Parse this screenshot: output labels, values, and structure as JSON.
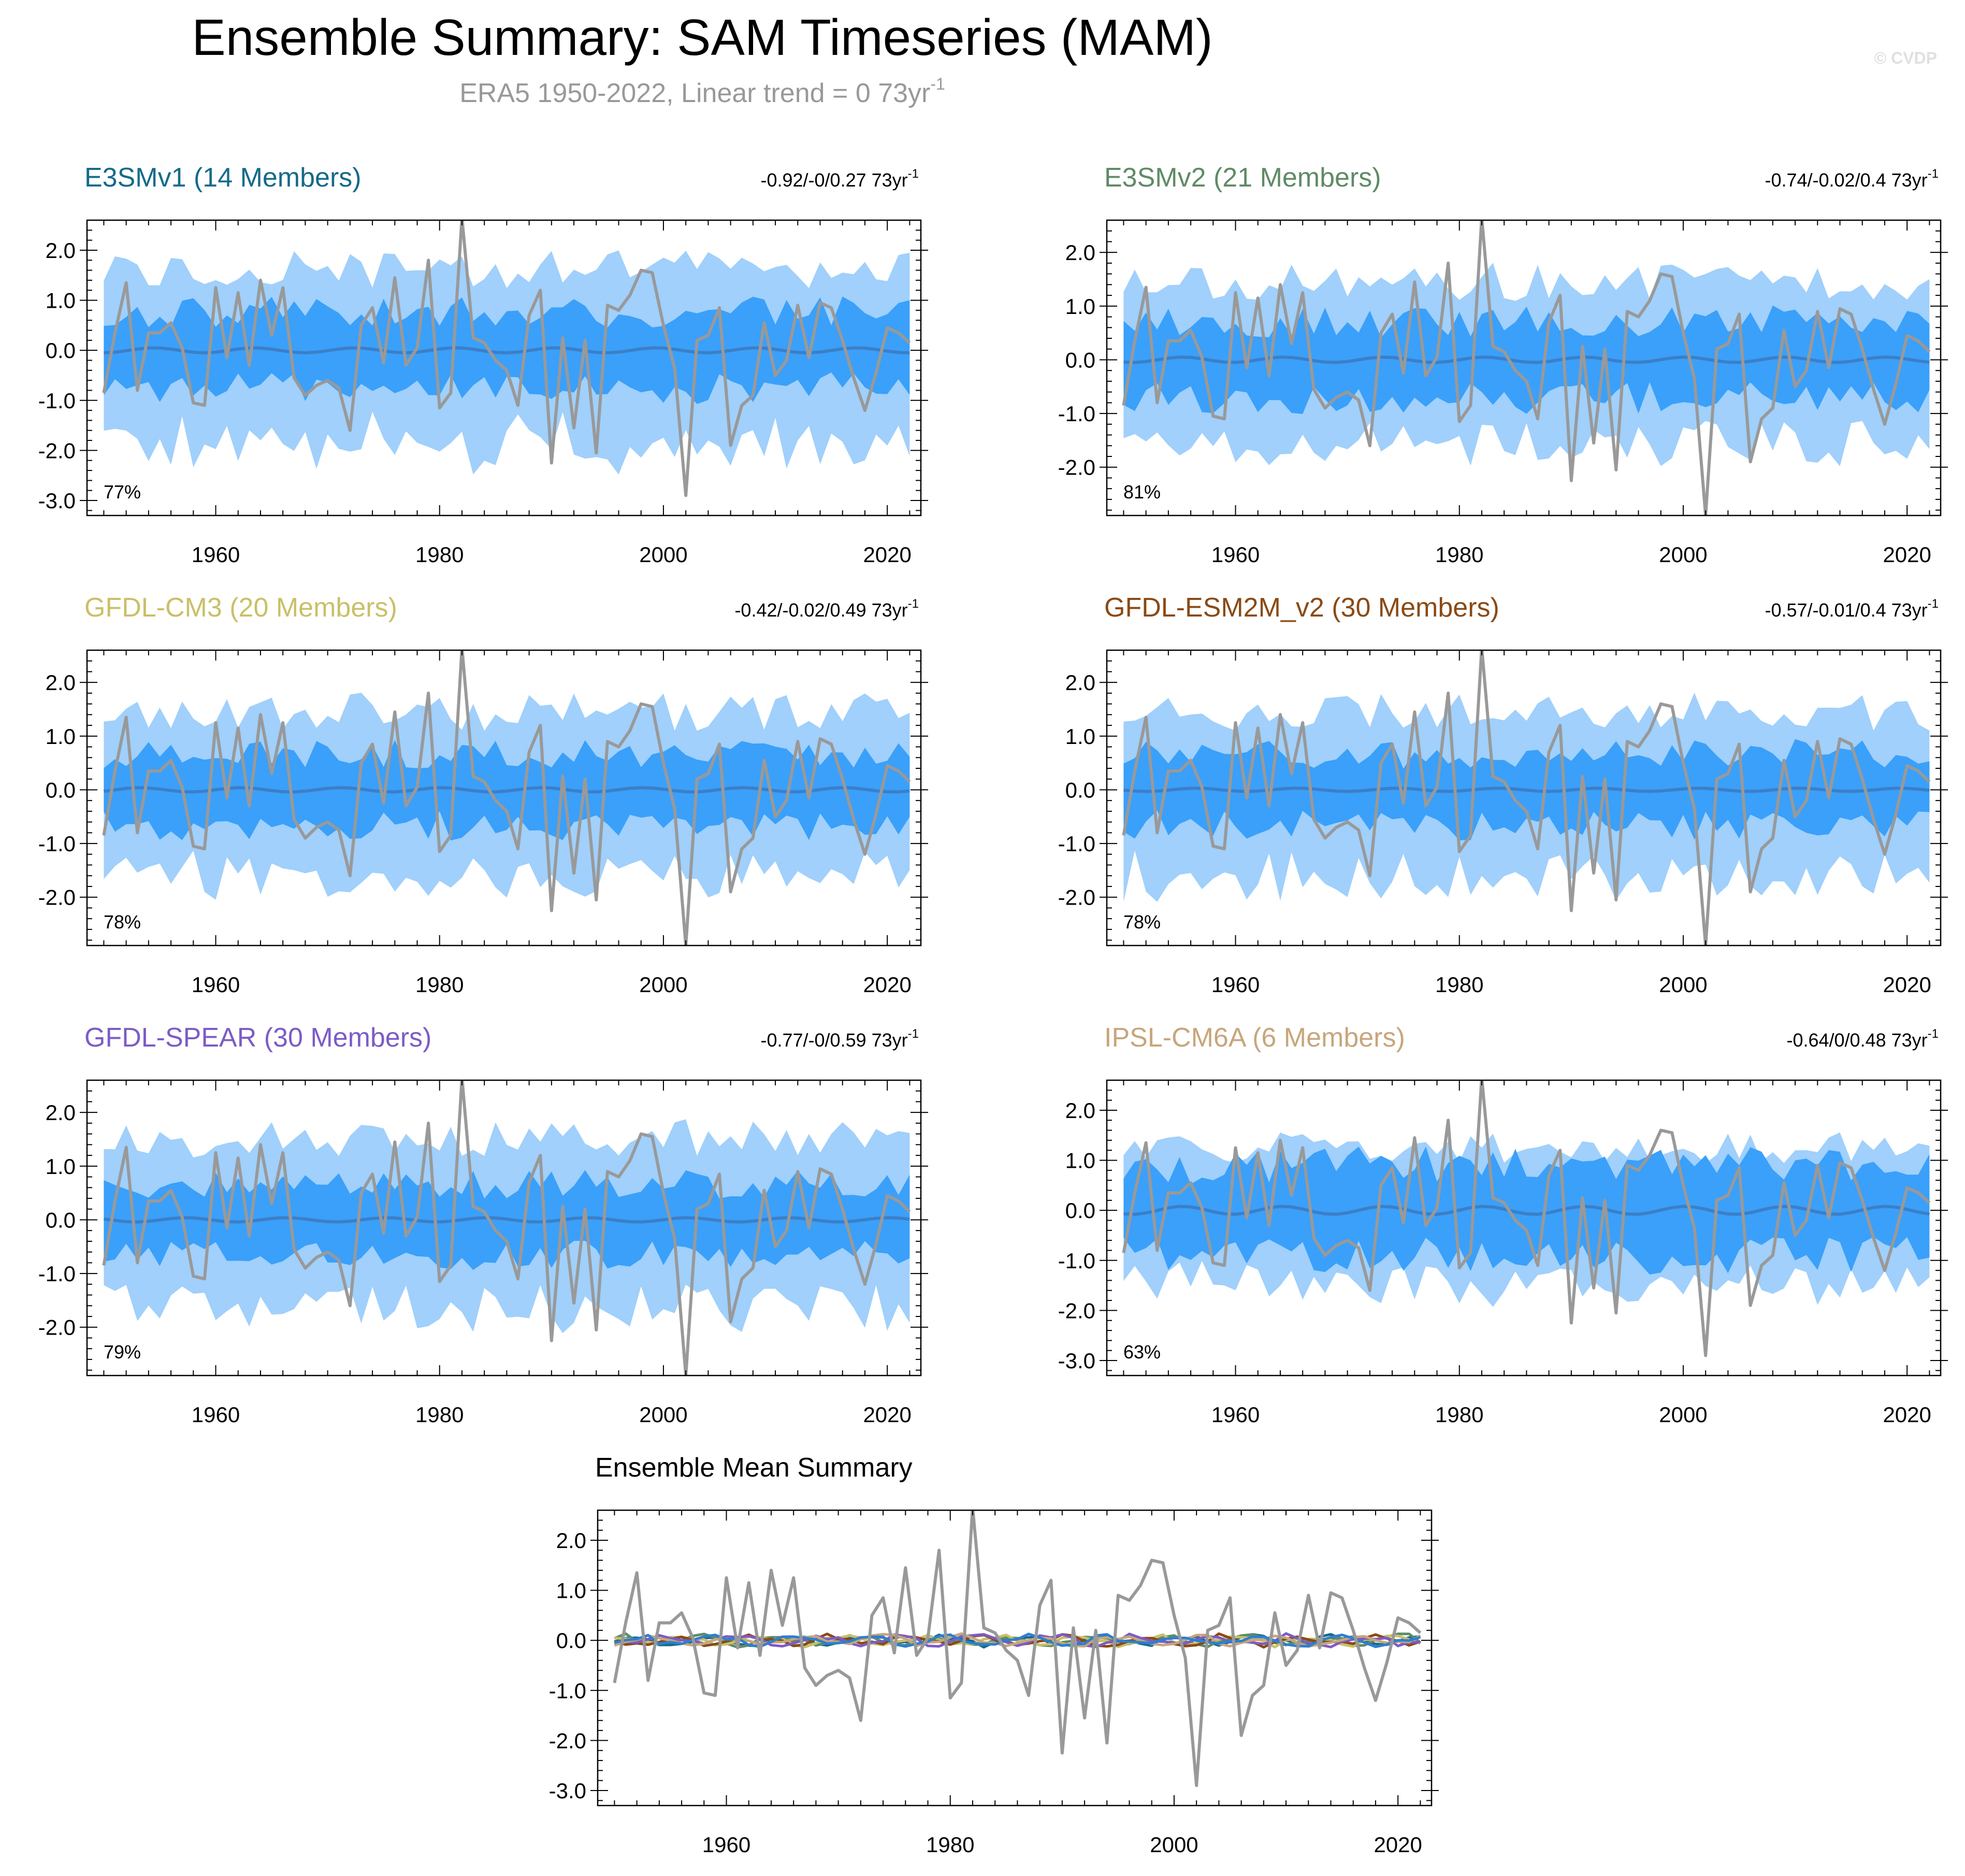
{
  "figure": {
    "title": "Ensemble Summary: SAM Timeseries (MAM)",
    "subtitle_main": "ERA5 1950-2022, Linear trend = 0 73yr",
    "subtitle_sup": "-1",
    "watermark": "© CVDP"
  },
  "colors": {
    "band_outer": "#a0d0fb",
    "band_inner": "#3aa0fa",
    "ens_mean_line": "#3c7fc7",
    "obs_line": "#999999",
    "title_grey": "#999999"
  },
  "chart_data": [
    {
      "type": "area",
      "id": "e3smv1",
      "title": "E3SMv1 (14 Members)",
      "title_color": "#156a8a",
      "trend_main": "-0.92/-0/0.27 73yr",
      "trend_sup": "-1",
      "percent_label": "77%",
      "xlim": [
        1948.5,
        2023
      ],
      "ylim": [
        -3.3,
        2.6
      ],
      "yticks": [
        -3,
        -2,
        -1,
        0,
        1,
        2
      ],
      "ytick_labels": [
        "-3.0",
        "-2.0",
        "-1.0",
        "0.0",
        "1.0",
        "2.0"
      ],
      "xticks": [
        1960,
        1980,
        2000,
        2020
      ],
      "xtick_labels": [
        "1960",
        "1980",
        "2000",
        "2020"
      ],
      "band_seed": 11,
      "outer_amp": 1.6,
      "inner_amp": 0.8,
      "outer_skew": -0.4,
      "mean_amp": 0.05
    },
    {
      "type": "area",
      "id": "e3smv2",
      "title": "E3SMv2 (21 Members)",
      "title_color": "#5f8b66",
      "trend_main": "-0.74/-0.02/0.4 73yr",
      "trend_sup": "-1",
      "percent_label": "81%",
      "xlim": [
        1948.5,
        2023
      ],
      "ylim": [
        -2.9,
        2.6
      ],
      "yticks": [
        -2,
        -1,
        0,
        1,
        2
      ],
      "ytick_labels": [
        "-2.0",
        "-1.0",
        "0.0",
        "1.0",
        "2.0"
      ],
      "xticks": [
        1960,
        1980,
        2000,
        2020
      ],
      "xtick_labels": [
        "1960",
        "1980",
        "2000",
        "2020"
      ],
      "band_seed": 23,
      "outer_amp": 1.45,
      "inner_amp": 0.75,
      "outer_skew": -0.1,
      "mean_amp": 0.05
    },
    {
      "type": "area",
      "id": "gfdl-cm3",
      "title": "GFDL-CM3 (20 Members)",
      "title_color": "#c9c068",
      "trend_main": "-0.42/-0.02/0.49 73yr",
      "trend_sup": "-1",
      "percent_label": "78%",
      "xlim": [
        1948.5,
        2023
      ],
      "ylim": [
        -2.9,
        2.6
      ],
      "yticks": [
        -2,
        -1,
        0,
        1,
        2
      ],
      "ytick_labels": [
        "-2.0",
        "-1.0",
        "0.0",
        "1.0",
        "2.0"
      ],
      "xticks": [
        1960,
        1980,
        2000,
        2020
      ],
      "xtick_labels": [
        "1960",
        "1980",
        "2000",
        "2020"
      ],
      "band_seed": 37,
      "outer_amp": 1.45,
      "inner_amp": 0.7,
      "outer_skew": -0.15,
      "mean_amp": 0.04
    },
    {
      "type": "area",
      "id": "gfdl-esm2m",
      "title": "GFDL-ESM2M_v2 (30 Members)",
      "title_color": "#8a4a14",
      "trend_main": "-0.57/-0.01/0.4 73yr",
      "trend_sup": "-1",
      "percent_label": "78%",
      "xlim": [
        1948.5,
        2023
      ],
      "ylim": [
        -2.9,
        2.6
      ],
      "yticks": [
        -2,
        -1,
        0,
        1,
        2
      ],
      "ytick_labels": [
        "-2.0",
        "-1.0",
        "0.0",
        "1.0",
        "2.0"
      ],
      "xticks": [
        1960,
        1980,
        2000,
        2020
      ],
      "xtick_labels": [
        "1960",
        "1980",
        "2000",
        "2020"
      ],
      "band_seed": 41,
      "outer_amp": 1.45,
      "inner_amp": 0.7,
      "outer_skew": -0.15,
      "mean_amp": 0.03
    },
    {
      "type": "area",
      "id": "gfdl-spear",
      "title": "GFDL-SPEAR (30 Members)",
      "title_color": "#7d5bc7",
      "trend_main": "-0.77/-0/0.59 73yr",
      "trend_sup": "-1",
      "percent_label": "79%",
      "xlim": [
        1948.5,
        2023
      ],
      "ylim": [
        -2.9,
        2.6
      ],
      "yticks": [
        -2,
        -1,
        0,
        1,
        2
      ],
      "ytick_labels": [
        "-2.0",
        "-1.0",
        "0.0",
        "1.0",
        "2.0"
      ],
      "xticks": [
        1960,
        1980,
        2000,
        2020
      ],
      "xtick_labels": [
        "1960",
        "1980",
        "2000",
        "2020"
      ],
      "band_seed": 53,
      "outer_amp": 1.5,
      "inner_amp": 0.7,
      "outer_skew": -0.15,
      "mean_amp": 0.04
    },
    {
      "type": "area",
      "id": "ipsl-cm6a",
      "title": "IPSL-CM6A (6 Members)",
      "title_color": "#c7a67c",
      "trend_main": "-0.64/0/0.48 73yr",
      "trend_sup": "-1",
      "percent_label": "63%",
      "xlim": [
        1948.5,
        2023
      ],
      "ylim": [
        -3.3,
        2.6
      ],
      "yticks": [
        -3,
        -2,
        -1,
        0,
        1,
        2
      ],
      "ytick_labels": [
        "-3.0",
        "-2.0",
        "-1.0",
        "0.0",
        "1.0",
        "2.0"
      ],
      "xticks": [
        1960,
        1980,
        2000,
        2020
      ],
      "xtick_labels": [
        "1960",
        "1980",
        "2000",
        "2020"
      ],
      "band_seed": 67,
      "outer_amp": 1.25,
      "inner_amp": 0.95,
      "outer_skew": -0.3,
      "mean_amp": 0.08
    },
    {
      "type": "line",
      "id": "ensemble-mean",
      "title": "Ensemble Mean Summary",
      "title_color": "#000000",
      "xlim": [
        1948.5,
        2023
      ],
      "ylim": [
        -3.3,
        2.6
      ],
      "yticks": [
        -3,
        -2,
        -1,
        0,
        1,
        2
      ],
      "ytick_labels": [
        "-3.0",
        "-2.0",
        "-1.0",
        "0.0",
        "1.0",
        "2.0"
      ],
      "xticks": [
        1960,
        1980,
        2000,
        2020
      ],
      "xtick_labels": [
        "1960",
        "1980",
        "2000",
        "2020"
      ],
      "series_colors": [
        "#156a8a",
        "#5f8b66",
        "#c9c068",
        "#8a4a14",
        "#7d5bc7",
        "#c7a67c",
        "#2d7fd0"
      ]
    }
  ],
  "observed": {
    "x_start": 1950,
    "values": [
      -0.85,
      0.35,
      1.35,
      -0.8,
      0.35,
      0.35,
      0.55,
      0.05,
      -1.05,
      -1.1,
      1.25,
      -0.15,
      1.15,
      -0.3,
      1.4,
      0.3,
      1.25,
      -0.55,
      -0.9,
      -0.7,
      -0.6,
      -0.75,
      -1.6,
      0.5,
      0.85,
      -0.25,
      1.45,
      -0.3,
      0.05,
      1.8,
      -1.15,
      -0.85,
      2.65,
      0.25,
      0.15,
      -0.2,
      -0.4,
      -1.1,
      0.7,
      1.2,
      -2.25,
      0.25,
      -1.55,
      0.2,
      -2.05,
      0.9,
      0.8,
      1.1,
      1.6,
      1.55,
      0.5,
      -0.35,
      -2.9,
      0.2,
      0.3,
      0.85,
      -1.9,
      -1.1,
      -0.9,
      0.55,
      -0.5,
      -0.2,
      0.9,
      -0.15,
      0.95,
      0.85,
      0.2,
      -0.55,
      -1.2,
      -0.45,
      0.45,
      0.35,
      0.15
    ]
  }
}
